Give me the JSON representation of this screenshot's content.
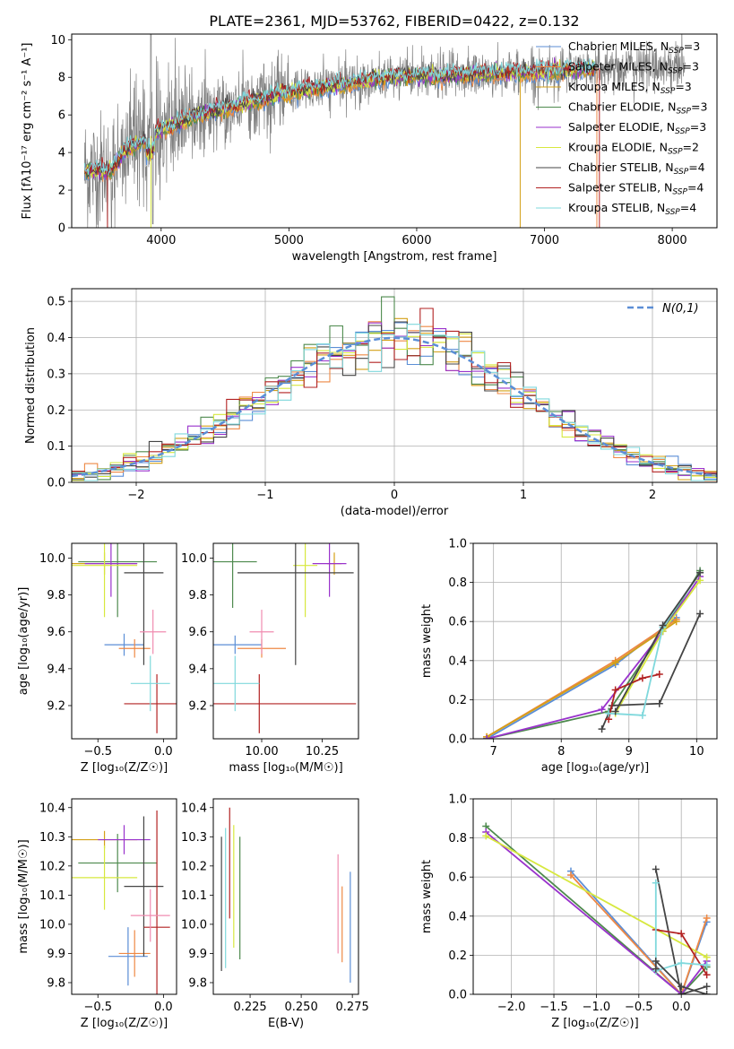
{
  "figure_title": "PLATE=2361, MJD=53762, FIBERID=0422, z=0.132",
  "legend_spectra": [
    {
      "label": "Chabrier MILES, N",
      "sub": "SSP",
      "tail": "=3",
      "color": "#5B8ED6"
    },
    {
      "label": "Salpeter MILES, N",
      "sub": "SSP",
      "tail": "=3",
      "color": "#EE8844"
    },
    {
      "label": "Kroupa MILES, N",
      "sub": "SSP",
      "tail": "=3",
      "color": "#D4A017"
    },
    {
      "label": "Chabrier ELODIE, N",
      "sub": "SSP",
      "tail": "=3",
      "color": "#4E8A4E"
    },
    {
      "label": "Salpeter ELODIE, N",
      "sub": "SSP",
      "tail": "=3",
      "color": "#9932CC"
    },
    {
      "label": "Kroupa ELODIE, N",
      "sub": "SSP",
      "tail": "=2",
      "color": "#D7E83E"
    },
    {
      "label": "Chabrier STELIB, N",
      "sub": "SSP",
      "tail": "=4",
      "color": "#444444"
    },
    {
      "label": "Salpeter STELIB, N",
      "sub": "SSP",
      "tail": "=4",
      "color": "#B22222"
    },
    {
      "label": "Kroupa STELIB, N",
      "sub": "SSP",
      "tail": "=4",
      "color": "#7FD8DC"
    }
  ],
  "legend_normal": "N(0,1)",
  "chart_data": [
    {
      "id": "spectrum",
      "type": "line",
      "xlabel": "wavelength [Angstrom, rest frame]",
      "ylabel": "Flux [fλ10⁻¹⁷ erg cm⁻² s⁻¹ A⁻¹]",
      "xlim": [
        3300,
        8350
      ],
      "ylim": [
        0,
        10.3
      ],
      "xticks": [
        4000,
        5000,
        6000,
        7000,
        8000
      ],
      "yticks": [
        0,
        2,
        4,
        6,
        8,
        10
      ],
      "continuum_knots": [
        [
          3400,
          3.0
        ],
        [
          3600,
          3.0
        ],
        [
          3700,
          4.0
        ],
        [
          3900,
          4.8
        ],
        [
          4000,
          5.2
        ],
        [
          4300,
          6.0
        ],
        [
          4600,
          6.5
        ],
        [
          5000,
          7.2
        ],
        [
          5400,
          7.6
        ],
        [
          5800,
          8.0
        ],
        [
          6200,
          8.1
        ],
        [
          6600,
          8.2
        ],
        [
          7000,
          8.3
        ],
        [
          7500,
          8.5
        ],
        [
          8000,
          8.6
        ],
        [
          8100,
          8.6
        ]
      ],
      "data_range": [
        3400,
        8100
      ],
      "model_range": [
        3400,
        7400
      ]
    },
    {
      "id": "residuals",
      "type": "histogram",
      "xlabel": "(data-model)/error",
      "ylabel": "Normed distribution",
      "xlim": [
        -2.5,
        2.5
      ],
      "ylim": [
        0,
        0.535
      ],
      "xticks": [
        -2,
        -1,
        0,
        1,
        2
      ],
      "yticks": [
        0.0,
        0.1,
        0.2,
        0.3,
        0.4,
        0.5
      ],
      "normal_curve": {
        "mean": 0,
        "sigma": 1
      }
    },
    {
      "id": "age_vs_Z",
      "type": "errorbar",
      "xlabel": "Z [log₁₀(Z/Z☉)]",
      "ylabel": "age  [log₁₀(age/yr)]",
      "xlim": [
        -0.7,
        0.1
      ],
      "ylim": [
        9.02,
        10.08
      ],
      "xticks": [
        -0.5,
        0.0
      ],
      "yticks": [
        9.2,
        9.4,
        9.6,
        9.8,
        10.0
      ],
      "points": [
        {
          "x": -0.3,
          "xerr": 0.15,
          "y": 9.53,
          "yerr": 0.06,
          "color": "#5B8ED6"
        },
        {
          "x": -0.22,
          "xerr": 0.12,
          "y": 9.51,
          "yerr": 0.05,
          "color": "#EE8844"
        },
        {
          "x": -0.45,
          "xerr": 0.25,
          "y": 9.97,
          "yerr": 0.06,
          "color": "#D4A017"
        },
        {
          "x": -0.35,
          "xerr": 0.3,
          "y": 9.98,
          "yerr": 0.3,
          "color": "#4E8A4E"
        },
        {
          "x": -0.4,
          "xerr": 0.2,
          "y": 9.97,
          "yerr": 0.18,
          "color": "#9932CC"
        },
        {
          "x": -0.45,
          "xerr": 0.25,
          "y": 9.96,
          "yerr": 0.28,
          "color": "#D7E83E"
        },
        {
          "x": -0.15,
          "xerr": 0.15,
          "y": 9.92,
          "yerr": 0.5,
          "color": "#444444"
        },
        {
          "x": -0.05,
          "xerr": 0.25,
          "y": 9.21,
          "yerr": 0.16,
          "color": "#B22222"
        },
        {
          "x": -0.1,
          "xerr": 0.15,
          "y": 9.32,
          "yerr": 0.15,
          "color": "#7FD8DC"
        },
        {
          "x": -0.08,
          "xerr": 0.1,
          "y": 9.6,
          "yerr": 0.12,
          "color": "#F08CB0"
        }
      ]
    },
    {
      "id": "age_vs_mass",
      "type": "errorbar",
      "xlabel": "mass [log₁₀(M/M☉)]",
      "ylabel": "",
      "xlim": [
        9.8,
        10.4
      ],
      "ylim": [
        9.02,
        10.08
      ],
      "xticks": [
        10.0,
        10.25
      ],
      "yticks": [
        9.2,
        9.4,
        9.6,
        9.8,
        10.0
      ],
      "points": [
        {
          "x": 9.89,
          "xerr": 0.11,
          "y": 9.53,
          "yerr": 0.05,
          "color": "#5B8ED6"
        },
        {
          "x": 10.0,
          "xerr": 0.1,
          "y": 9.51,
          "yerr": 0.05,
          "color": "#EE8844"
        },
        {
          "x": 10.3,
          "xerr": 0.03,
          "y": 9.97,
          "yerr": 0.06,
          "color": "#D4A017"
        },
        {
          "x": 9.88,
          "xerr": 0.1,
          "y": 9.98,
          "yerr": 0.25,
          "color": "#4E8A4E"
        },
        {
          "x": 10.28,
          "xerr": 0.07,
          "y": 9.97,
          "yerr": 0.18,
          "color": "#9932CC"
        },
        {
          "x": 10.18,
          "xerr": 0.05,
          "y": 9.96,
          "yerr": 0.28,
          "color": "#D7E83E"
        },
        {
          "x": 10.14,
          "xerr": 0.24,
          "y": 9.92,
          "yerr": 0.5,
          "color": "#444444"
        },
        {
          "x": 9.99,
          "xerr": 0.4,
          "y": 9.21,
          "yerr": 0.16,
          "color": "#B22222"
        },
        {
          "x": 9.89,
          "xerr": 0.1,
          "y": 9.32,
          "yerr": 0.15,
          "color": "#7FD8DC"
        },
        {
          "x": 10.0,
          "xerr": 0.05,
          "y": 9.6,
          "yerr": 0.12,
          "color": "#F08CB0"
        }
      ]
    },
    {
      "id": "mass_weight_vs_age",
      "type": "line",
      "xlabel": "age  [log₁₀(age/yr)]",
      "ylabel": "mass weight",
      "xlim": [
        6.7,
        10.3
      ],
      "ylim": [
        0,
        1.0
      ],
      "xticks": [
        7,
        8,
        9,
        10
      ],
      "yticks": [
        0.0,
        0.2,
        0.4,
        0.6,
        0.8,
        1.0
      ],
      "series": [
        {
          "color": "#5B8ED6",
          "x": [
            6.9,
            8.8,
            9.7
          ],
          "y": [
            0.0,
            0.38,
            0.62
          ]
        },
        {
          "color": "#EE8844",
          "x": [
            6.9,
            8.8,
            9.7
          ],
          "y": [
            0.01,
            0.4,
            0.61
          ]
        },
        {
          "color": "#D4A017",
          "x": [
            6.9,
            8.8,
            9.7
          ],
          "y": [
            0.01,
            0.39,
            0.6
          ]
        },
        {
          "color": "#4E8A4E",
          "x": [
            6.9,
            8.7,
            9.5,
            10.05
          ],
          "y": [
            0.0,
            0.14,
            0.55,
            0.86
          ]
        },
        {
          "color": "#9932CC",
          "x": [
            6.9,
            8.6,
            9.5,
            10.05
          ],
          "y": [
            0.0,
            0.15,
            0.55,
            0.83
          ]
        },
        {
          "color": "#D7E83E",
          "x": [
            8.8,
            9.5,
            10.05
          ],
          "y": [
            0.13,
            0.55,
            0.81
          ]
        },
        {
          "color": "#444444",
          "x": [
            8.6,
            8.75,
            9.45,
            10.05
          ],
          "y": [
            0.05,
            0.17,
            0.18,
            0.64
          ]
        },
        {
          "color": "#B22222",
          "x": [
            8.7,
            8.8,
            9.2,
            9.45
          ],
          "y": [
            0.1,
            0.25,
            0.31,
            0.33
          ]
        },
        {
          "color": "#7FD8DC",
          "x": [
            8.7,
            9.2,
            9.5,
            10.05
          ],
          "y": [
            0.13,
            0.12,
            0.57,
            0.85
          ]
        },
        {
          "color": "#444444",
          "x": [
            8.8,
            9.5,
            10.05
          ],
          "y": [
            0.14,
            0.58,
            0.85
          ]
        }
      ]
    },
    {
      "id": "mass_vs_Z",
      "type": "errorbar",
      "xlabel": "Z [log₁₀(Z/Z☉)]",
      "ylabel": "mass [log₁₀(M/M☉)]",
      "xlim": [
        -0.7,
        0.1
      ],
      "ylim": [
        9.76,
        10.43
      ],
      "xticks": [
        -0.5,
        0.0
      ],
      "yticks": [
        9.8,
        9.9,
        10.0,
        10.1,
        10.2,
        10.3,
        10.4
      ],
      "points": [
        {
          "x": -0.27,
          "xerr": 0.15,
          "y": 9.89,
          "yerr": 0.1,
          "color": "#5B8ED6"
        },
        {
          "x": -0.22,
          "xerr": 0.12,
          "y": 9.9,
          "yerr": 0.08,
          "color": "#EE8844"
        },
        {
          "x": -0.45,
          "xerr": 0.25,
          "y": 10.29,
          "yerr": 0.03,
          "color": "#D4A017"
        },
        {
          "x": -0.35,
          "xerr": 0.3,
          "y": 10.21,
          "yerr": 0.1,
          "color": "#4E8A4E"
        },
        {
          "x": -0.3,
          "xerr": 0.2,
          "y": 10.29,
          "yerr": 0.05,
          "color": "#9932CC"
        },
        {
          "x": -0.45,
          "xerr": 0.25,
          "y": 10.16,
          "yerr": 0.11,
          "color": "#D7E83E"
        },
        {
          "x": -0.15,
          "xerr": 0.15,
          "y": 10.13,
          "yerr": 0.24,
          "color": "#444444"
        },
        {
          "x": -0.05,
          "xerr": 0.1,
          "y": 9.99,
          "yerr": 0.4,
          "color": "#B22222"
        },
        {
          "x": -0.1,
          "xerr": 0.15,
          "y": 10.03,
          "yerr": 0.09,
          "color": "#F08CB0"
        }
      ]
    },
    {
      "id": "mass_vs_EBV",
      "type": "errorbar",
      "xlabel": "E(B-V)",
      "ylabel": "",
      "xlim": [
        0.207,
        0.278
      ],
      "ylim": [
        9.76,
        10.43
      ],
      "xticks": [
        0.225,
        0.25,
        0.275
      ],
      "yticks": [
        9.8,
        9.9,
        10.0,
        10.1,
        10.2,
        10.3,
        10.4
      ],
      "points": [
        {
          "x": 0.274,
          "xerr": 0,
          "y": 9.99,
          "yerr": 0.19,
          "color": "#5B8ED6"
        },
        {
          "x": 0.27,
          "xerr": 0,
          "y": 10.0,
          "yerr": 0.13,
          "color": "#EE8844"
        },
        {
          "x": 0.268,
          "xerr": 0,
          "y": 10.07,
          "yerr": 0.17,
          "color": "#F08CB0"
        },
        {
          "x": 0.22,
          "xerr": 0,
          "y": 10.09,
          "yerr": 0.21,
          "color": "#4E8A4E"
        },
        {
          "x": 0.217,
          "xerr": 0,
          "y": 10.13,
          "yerr": 0.21,
          "color": "#D7E83E"
        },
        {
          "x": 0.215,
          "xerr": 0,
          "y": 10.21,
          "yerr": 0.19,
          "color": "#B22222"
        },
        {
          "x": 0.213,
          "xerr": 0,
          "y": 10.09,
          "yerr": 0.24,
          "color": "#7FD8DC"
        },
        {
          "x": 0.211,
          "xerr": 0,
          "y": 10.07,
          "yerr": 0.23,
          "color": "#444444"
        }
      ]
    },
    {
      "id": "mass_weight_vs_Z",
      "type": "line",
      "xlabel": "Z [log₁₀(Z/Z☉)]",
      "ylabel": "mass weight",
      "xlim": [
        -2.45,
        0.42
      ],
      "ylim": [
        0,
        1.0
      ],
      "xticks": [
        -2.0,
        -1.5,
        -1.0,
        -0.5,
        0.0
      ],
      "yticks": [
        0.0,
        0.2,
        0.4,
        0.6,
        0.8,
        1.0
      ],
      "series": [
        {
          "color": "#5B8ED6",
          "x": [
            -1.3,
            0.0,
            0.3
          ],
          "y": [
            0.63,
            0.0,
            0.37
          ]
        },
        {
          "color": "#EE8844",
          "x": [
            -1.3,
            0.0,
            0.3
          ],
          "y": [
            0.61,
            0.0,
            0.39
          ]
        },
        {
          "color": "#4E8A4E",
          "x": [
            -2.3,
            0.0,
            0.3
          ],
          "y": [
            0.86,
            0.0,
            0.14
          ]
        },
        {
          "color": "#9932CC",
          "x": [
            -2.3,
            0.0,
            0.3
          ],
          "y": [
            0.83,
            0.0,
            0.17
          ]
        },
        {
          "color": "#D7E83E",
          "x": [
            -2.3,
            0.3
          ],
          "y": [
            0.81,
            0.19
          ]
        },
        {
          "color": "#444444",
          "x": [
            -0.3,
            0.0,
            0.3
          ],
          "y": [
            0.64,
            0.0,
            0.04
          ]
        },
        {
          "color": "#B22222",
          "x": [
            -0.3,
            0.0,
            0.3
          ],
          "y": [
            0.33,
            0.31,
            0.1
          ]
        },
        {
          "color": "#7FD8DC",
          "x": [
            -0.3,
            -0.3,
            0.0,
            0.3
          ],
          "y": [
            0.57,
            0.12,
            0.16,
            0.15
          ]
        },
        {
          "color": "#444444",
          "x": [
            -0.3,
            -0.3,
            0.0,
            0.3
          ],
          "y": [
            0.13,
            0.17,
            0.04,
            0.0
          ]
        }
      ]
    }
  ]
}
